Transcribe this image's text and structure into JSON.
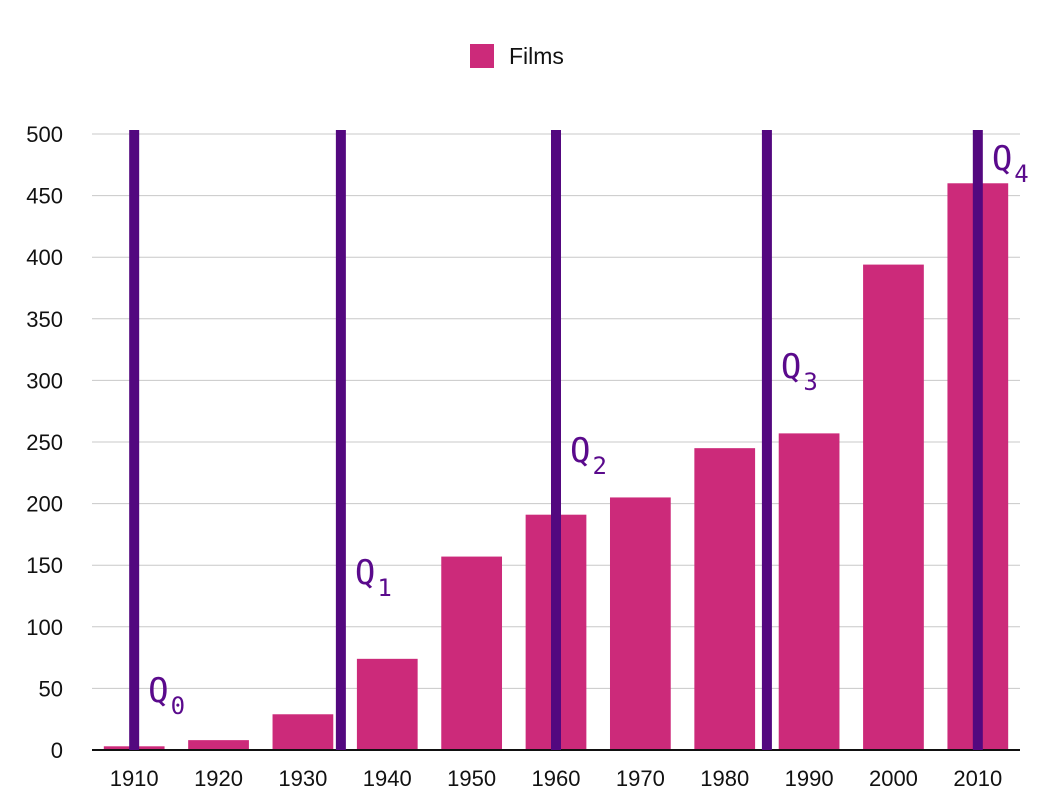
{
  "chart_data": {
    "type": "bar",
    "categories": [
      "1910",
      "1920",
      "1930",
      "1940",
      "1950",
      "1960",
      "1970",
      "1980",
      "1990",
      "2000",
      "2010"
    ],
    "series": [
      {
        "name": "Films",
        "color": "#cc2a7a",
        "values": [
          3,
          8,
          29,
          74,
          157,
          191,
          205,
          245,
          257,
          394,
          460
        ]
      }
    ],
    "title": "",
    "xlabel": "",
    "ylabel": "",
    "ylim": [
      0,
      500
    ],
    "yticks": [
      0,
      50,
      100,
      150,
      200,
      250,
      300,
      350,
      400,
      450,
      500
    ],
    "grid": true,
    "legend_position": "top-center",
    "quartile_lines": [
      {
        "label": "Q",
        "subscript": "0",
        "x": 1910
      },
      {
        "label": "Q",
        "subscript": "1",
        "x": 1934.5
      },
      {
        "label": "Q",
        "subscript": "2",
        "x": 1960
      },
      {
        "label": "Q",
        "subscript": "3",
        "x": 1985
      },
      {
        "label": "Q",
        "subscript": "4",
        "x": 2010
      }
    ],
    "quartile_color": "#53087f"
  }
}
